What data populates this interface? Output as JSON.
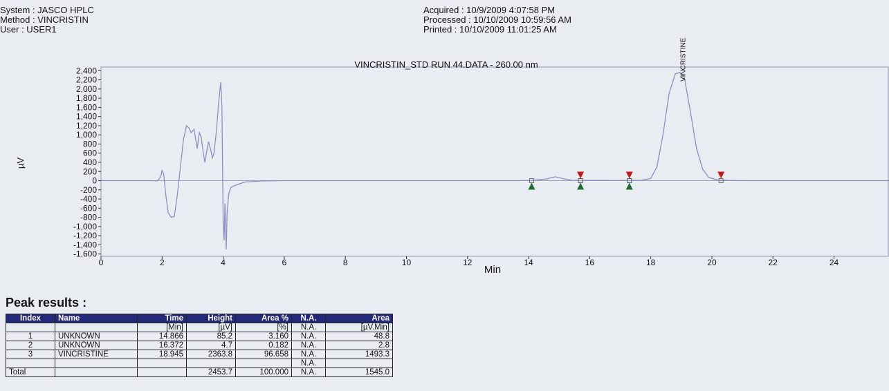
{
  "header": {
    "system": "System : JASCO HPLC",
    "method": "Method : VINCRISTIN",
    "user": "User : USER1",
    "acquired": "Acquired : 10/9/2009 4:07:58 PM",
    "processed": "Processed  : 10/10/2009 10:59:56 AM",
    "printed": "Printed : 10/10/2009 11:01:25 AM"
  },
  "chart_data": {
    "type": "line",
    "title": "VINCRISTIN_STD RUN 44.DATA - 260.00 nm",
    "xlabel": "Min",
    "ylabel": "µV",
    "xlim": [
      0,
      25.8
    ],
    "ylim": [
      -1650,
      2480
    ],
    "x_ticks": [
      0,
      2,
      4,
      6,
      8,
      10,
      12,
      14,
      16,
      18,
      20,
      22,
      24
    ],
    "y_ticks": [
      2400,
      2200,
      2000,
      1800,
      1600,
      1400,
      1200,
      1000,
      800,
      600,
      400,
      200,
      0,
      -200,
      -400,
      -600,
      -800,
      -1000,
      -1200,
      -1400,
      -1600
    ],
    "y_tick_labels": [
      "2,400",
      "2,200",
      "2,000",
      "1,800",
      "1,600",
      "1,400",
      "1,200",
      "1,000",
      "800",
      "600",
      "400",
      "200",
      "0",
      "-200",
      "-400",
      "-600",
      "-800",
      "-1,000",
      "-1,200",
      "-1,400",
      "-1,600"
    ],
    "series": [
      {
        "color": "#8a8fc0",
        "points": [
          [
            0,
            0
          ],
          [
            1.6,
            0
          ],
          [
            1.85,
            -5
          ],
          [
            1.95,
            80
          ],
          [
            2.0,
            220
          ],
          [
            2.05,
            150
          ],
          [
            2.12,
            -300
          ],
          [
            2.2,
            -700
          ],
          [
            2.3,
            -800
          ],
          [
            2.4,
            -780
          ],
          [
            2.5,
            -300
          ],
          [
            2.6,
            300
          ],
          [
            2.7,
            900
          ],
          [
            2.8,
            1200
          ],
          [
            2.88,
            1150
          ],
          [
            2.95,
            1050
          ],
          [
            3.05,
            1120
          ],
          [
            3.1,
            900
          ],
          [
            3.15,
            700
          ],
          [
            3.22,
            1050
          ],
          [
            3.28,
            950
          ],
          [
            3.35,
            600
          ],
          [
            3.4,
            400
          ],
          [
            3.45,
            600
          ],
          [
            3.52,
            850
          ],
          [
            3.6,
            650
          ],
          [
            3.65,
            500
          ],
          [
            3.7,
            600
          ],
          [
            3.78,
            1100
          ],
          [
            3.85,
            1700
          ],
          [
            3.92,
            2150
          ],
          [
            3.96,
            1600
          ],
          [
            3.98,
            300
          ],
          [
            4.0,
            -900
          ],
          [
            4.03,
            -1300
          ],
          [
            4.06,
            -500
          ],
          [
            4.08,
            -1000
          ],
          [
            4.1,
            -1500
          ],
          [
            4.13,
            -700
          ],
          [
            4.18,
            -300
          ],
          [
            4.25,
            -150
          ],
          [
            4.4,
            -100
          ],
          [
            4.7,
            -30
          ],
          [
            5.2,
            -8
          ],
          [
            6,
            0
          ],
          [
            10,
            0
          ],
          [
            13.6,
            0
          ],
          [
            14.1,
            5
          ],
          [
            14.6,
            40
          ],
          [
            14.87,
            85
          ],
          [
            15.1,
            50
          ],
          [
            15.4,
            10
          ],
          [
            15.8,
            5
          ],
          [
            16.37,
            5
          ],
          [
            16.8,
            2
          ],
          [
            17.3,
            5
          ],
          [
            17.7,
            10
          ],
          [
            18.0,
            50
          ],
          [
            18.2,
            300
          ],
          [
            18.4,
            1000
          ],
          [
            18.6,
            1900
          ],
          [
            18.8,
            2330
          ],
          [
            18.95,
            2364
          ],
          [
            19.1,
            2250
          ],
          [
            19.3,
            1500
          ],
          [
            19.5,
            700
          ],
          [
            19.7,
            250
          ],
          [
            19.9,
            70
          ],
          [
            20.2,
            15
          ],
          [
            20.5,
            5
          ],
          [
            21,
            0
          ],
          [
            25.8,
            0
          ]
        ]
      }
    ],
    "peak_label": {
      "text": "VINCRISTINE",
      "x": 18.95
    },
    "baseline_markers": {
      "start": [
        14.1,
        15.7,
        17.3
      ],
      "end": [
        15.7,
        17.3,
        20.3
      ]
    }
  },
  "peak_results": {
    "title": "Peak results :",
    "columns": [
      "Index",
      "Name",
      "Time",
      "Height",
      "Area %",
      "N.A.",
      "Area"
    ],
    "units": [
      "",
      "",
      "[Min]",
      "[µV]",
      "[%]",
      "N.A.",
      "[µV.Min]"
    ],
    "rows": [
      [
        "1",
        "UNKNOWN",
        "14.866",
        "85.2",
        "3.160",
        "N.A.",
        "48.8"
      ],
      [
        "2",
        "UNKNOWN",
        "16.372",
        "4.7",
        "0.182",
        "N.A.",
        "2.8"
      ],
      [
        "3",
        "VINCRISTINE",
        "18.945",
        "2363.8",
        "96.658",
        "N.A.",
        "1493.3"
      ],
      [
        "",
        "",
        "",
        "",
        "",
        "N.A.",
        ""
      ],
      [
        "Total",
        "",
        "",
        "2453.7",
        "100.000",
        "N.A.",
        "1545.0"
      ]
    ]
  },
  "colors": {
    "trace": "#8a8fc0",
    "start_marker": "#1e6b35",
    "end_marker": "#c21a1a",
    "table_header": "#25297a"
  }
}
